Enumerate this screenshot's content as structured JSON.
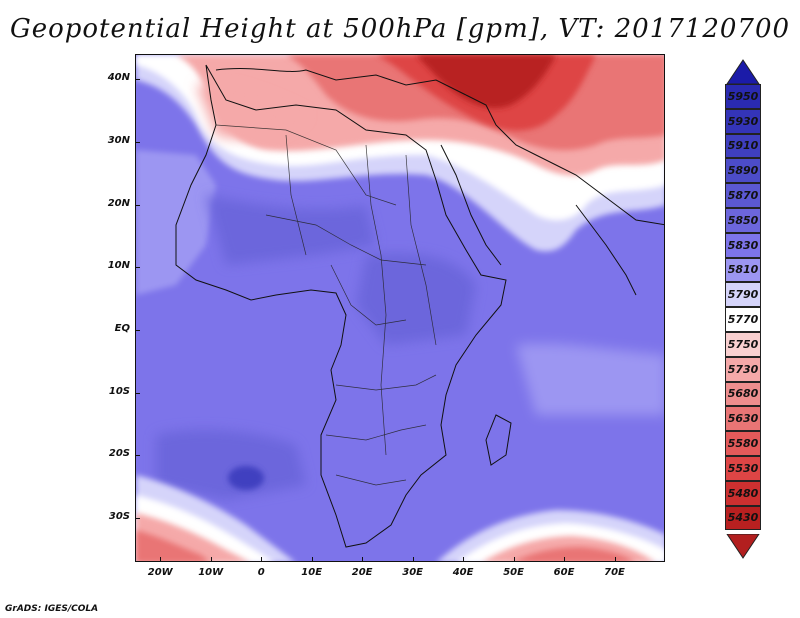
{
  "title": "Geopotential Height at 500hPa [gpm], VT: 2017120700",
  "footer": "GrADS: IGES/COLA",
  "map": {
    "lon_range": [
      -25,
      80
    ],
    "lat_range": [
      -37,
      44
    ],
    "lat_labels": [
      {
        "lat": 40,
        "label": "40N"
      },
      {
        "lat": 30,
        "label": "30N"
      },
      {
        "lat": 20,
        "label": "20N"
      },
      {
        "lat": 10,
        "label": "10N"
      },
      {
        "lat": 0,
        "label": "EQ"
      },
      {
        "lat": -10,
        "label": "10S"
      },
      {
        "lat": -20,
        "label": "20S"
      },
      {
        "lat": -30,
        "label": "30S"
      }
    ],
    "lon_labels": [
      {
        "lon": -20,
        "label": "20W"
      },
      {
        "lon": -10,
        "label": "10W"
      },
      {
        "lon": 0,
        "label": "0"
      },
      {
        "lon": 10,
        "label": "10E"
      },
      {
        "lon": 20,
        "label": "20E"
      },
      {
        "lon": 30,
        "label": "30E"
      },
      {
        "lon": 40,
        "label": "40E"
      },
      {
        "lon": 50,
        "label": "50E"
      },
      {
        "lon": 60,
        "label": "60E"
      },
      {
        "lon": 70,
        "label": "70E"
      }
    ]
  },
  "colorbar": {
    "top_arrow_color": "#1b1ba8",
    "bottom_arrow_color": "#b21f1f",
    "levels": [
      {
        "label": "5950",
        "color": "#2a2ab0"
      },
      {
        "label": "5930",
        "color": "#3434b8"
      },
      {
        "label": "5910",
        "color": "#3f3fc0"
      },
      {
        "label": "5890",
        "color": "#4c4cc8"
      },
      {
        "label": "5870",
        "color": "#5b58d2"
      },
      {
        "label": "5850",
        "color": "#6c66dc"
      },
      {
        "label": "5830",
        "color": "#7d74ea"
      },
      {
        "label": "5810",
        "color": "#9c96f2"
      },
      {
        "label": "5790",
        "color": "#d5d4fa"
      },
      {
        "label": "5770",
        "color": "#ffffff"
      },
      {
        "label": "5750",
        "color": "#f9d0d0"
      },
      {
        "label": "5730",
        "color": "#f5a9a9"
      },
      {
        "label": "5680",
        "color": "#ee8e8e"
      },
      {
        "label": "5630",
        "color": "#e97575"
      },
      {
        "label": "5580",
        "color": "#e45a5a"
      },
      {
        "label": "5530",
        "color": "#de4545"
      },
      {
        "label": "5480",
        "color": "#cc3030"
      },
      {
        "label": "5430",
        "color": "#b82020"
      }
    ]
  }
}
